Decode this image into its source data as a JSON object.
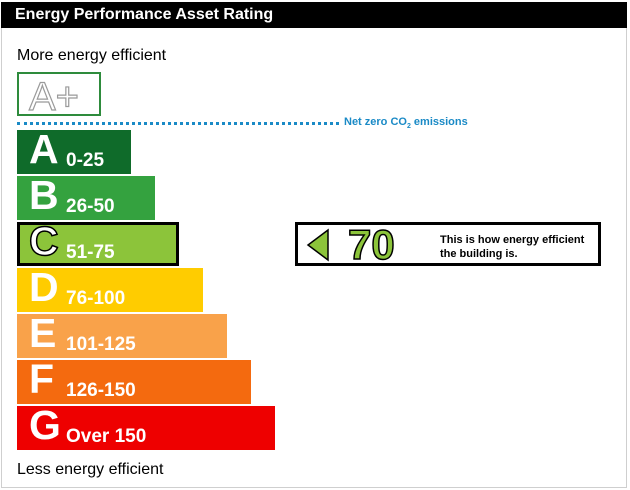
{
  "header": {
    "title": "Energy Performance Asset Rating"
  },
  "labels": {
    "top": "More energy efficient",
    "bottom": "Less energy efficient",
    "net_zero": "Net zero CO",
    "net_zero_sub": "2",
    "net_zero_suffix": " emissions"
  },
  "aplus": {
    "label": "A+",
    "color": "#2e8b3c"
  },
  "chart_data": {
    "type": "bar",
    "categories": [
      "A",
      "B",
      "C",
      "D",
      "E",
      "F",
      "G"
    ],
    "ranges": [
      "0-25",
      "26-50",
      "51-75",
      "76-100",
      "101-125",
      "126-150",
      "Over 150"
    ],
    "colors": [
      "#0f6b2a",
      "#34a23f",
      "#8cc43a",
      "#ffcc00",
      "#f9a24a",
      "#f46a0f",
      "#ee0000"
    ],
    "current_band": "C",
    "rating": {
      "value": "70",
      "band": "C",
      "color": "#8cc43a"
    }
  },
  "rating_box": {
    "text_line1": "This is how energy efficient",
    "text_line2": "the building is."
  }
}
